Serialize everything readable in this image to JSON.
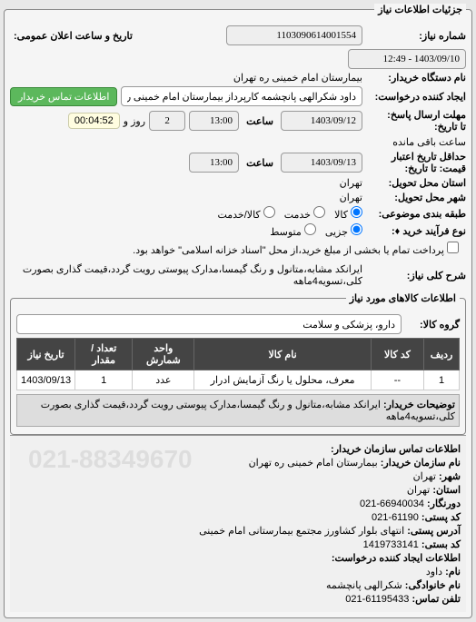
{
  "fieldset_title": "جزئیات اطلاعات نیاز",
  "rows": {
    "niaz_number_label": "شماره نیاز:",
    "niaz_number": "1103090614001554",
    "public_date_label": "تاریخ و ساعت اعلان عمومی:",
    "public_date": "1403/09/10 - 12:49",
    "buyer_device_label": "نام دستگاه خریدار:",
    "buyer_device": "بیمارستان امام خمینی ره  تهران",
    "creator_label": "ایجاد کننده درخواست:",
    "creator_value": "داود شکرالهی پانچشمه کارپرداز بیمارستان امام خمینی ره  تهران",
    "contact_btn": "اطلاعات تماس خریدار",
    "deadline_send_label": "مهلت ارسال پاسخ:\nتا تاریخ:",
    "deadline_date": "1403/09/12",
    "hour_label": "ساعت",
    "deadline_time": "13:00",
    "days_remain": "2",
    "days_remain_label": "روز و",
    "timer": "00:04:52",
    "remain_label": "ساعت باقی مانده",
    "min_price_label": "حداقل تاریخ اعتبار\nقیمت: تا تاریخ:",
    "min_price_date": "1403/09/13",
    "min_price_time": "13:00",
    "province_label": "استان محل تحویل:",
    "province_value": "تهران",
    "city_label": "شهر محل تحویل:",
    "city_value": "تهران",
    "subject_class_label": "طبقه بندی موضوعی:",
    "radio_all": "کالا",
    "radio_service": "خدمت",
    "radio_kala_khedmat": "کالا/خدمت",
    "cradio_all": true,
    "buy_type_label": "نوع فرآیند خرید ♦:",
    "radio_general": "جزیی",
    "radio_medium": "متوسط",
    "cradio_general": true,
    "buy_note": "پرداخت تمام یا بخشی از مبلغ خرید،از محل \"اسناد خزانه اسلامی\" خواهد بود.",
    "sharh_label": "شرح کلی نیاز:",
    "sharh_value": "ایرانکد مشابه،متانول و رنگ گیمسا،مدارک پیوستی رویت گردد،قیمت گذاری بصورت کلی،تسویه4ماهه"
  },
  "section2_title": "اطلاعات کالاهای مورد نیاز",
  "group_label": "گروه کالا:",
  "group_value": "دارو، پزشکی و سلامت",
  "table": {
    "headers": [
      "ردیف",
      "کد کالا",
      "نام کالا",
      "واحد شمارش",
      "تعداد / مقدار",
      "تاریخ نیاز"
    ],
    "col_widths": [
      "8%",
      "12%",
      "40%",
      "14%",
      "13%",
      "13%"
    ],
    "rows": [
      [
        "1",
        "--",
        "معرف، محلول یا رنگ آزمایش ادرار",
        "عدد",
        "1",
        "1403/09/13"
      ]
    ]
  },
  "buyer_note_label": "توضیحات خریدار:",
  "buyer_note": "ایرانکد مشابه،متانول و رنگ گیمسا،مدارک پیوستی رویت گردد،قیمت گذاری بصورت کلی،تسویه4ماهه",
  "contact": {
    "title": "اطلاعات تماس سازمان خریدار:",
    "org_label": "نام سازمان خریدار:",
    "org": "بیمارستان امام خمینی ره تهران",
    "city_label": "شهر:",
    "city": "تهران",
    "province_label": "استان:",
    "province": "تهران",
    "fax_label": "دورنگار:",
    "fax": "66940034-021",
    "post_label": "کد پستی:",
    "post": "61190-021",
    "addr_label": "آدرس پستی:",
    "addr": "انتهای بلوار کشاورز مجتمع بیمارستانی امام خمینی",
    "code_label": "کد بستی:",
    "code": "1419733141",
    "creator_title": "اطلاعات ایجاد کننده درخواست:",
    "name_label": "نام:",
    "name": "داود",
    "family_label": "نام خانوادگی:",
    "family": "شکرالهی پانچشمه",
    "phone_label": "تلفن تماس:",
    "phone": "61195433-021",
    "watermark": "021-88349670"
  },
  "colors": {
    "bg": "#e8e8e8",
    "fieldset_bg": "#f5f5f5",
    "th_bg": "#444444",
    "btn_green": "#5cb85c",
    "timer_bg": "#fffde0"
  }
}
